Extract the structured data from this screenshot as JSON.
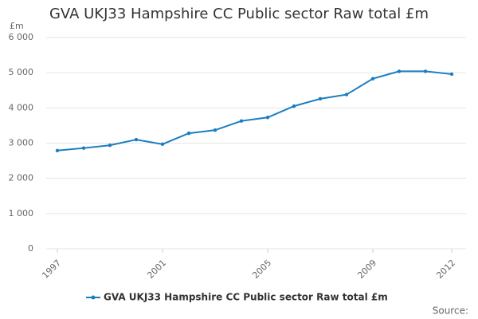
{
  "chart_data": {
    "type": "line",
    "title": "GVA UKJ33 Hampshire CC Public sector Raw total £m",
    "y_unit": "£m",
    "source": "Source:",
    "x": [
      1997,
      1998,
      1999,
      2000,
      2001,
      2002,
      2003,
      2004,
      2005,
      2006,
      2007,
      2008,
      2009,
      2010,
      2011,
      2012
    ],
    "series": [
      {
        "name": "GVA UKJ33 Hampshire CC Public sector Raw total £m",
        "color": "#1a7dc0",
        "values": [
          2790,
          2860,
          2940,
          3100,
          2970,
          3280,
          3370,
          3630,
          3730,
          4050,
          4260,
          4380,
          4830,
          5040,
          5040,
          4960
        ]
      }
    ],
    "xlim": [
      1997,
      2012
    ],
    "xticks": [
      1997,
      2001,
      2005,
      2009,
      2012
    ],
    "ylim": [
      0,
      6000
    ],
    "yticks": [
      0,
      {
        "value": 1000,
        "label": "1 000"
      },
      {
        "value": 2000,
        "label": "2 000"
      },
      {
        "value": 3000,
        "label": "3 000"
      },
      {
        "value": 4000,
        "label": "4 000"
      },
      {
        "value": 5000,
        "label": "5 000"
      },
      {
        "value": 6000,
        "label": "6 000"
      }
    ],
    "grid": true
  }
}
